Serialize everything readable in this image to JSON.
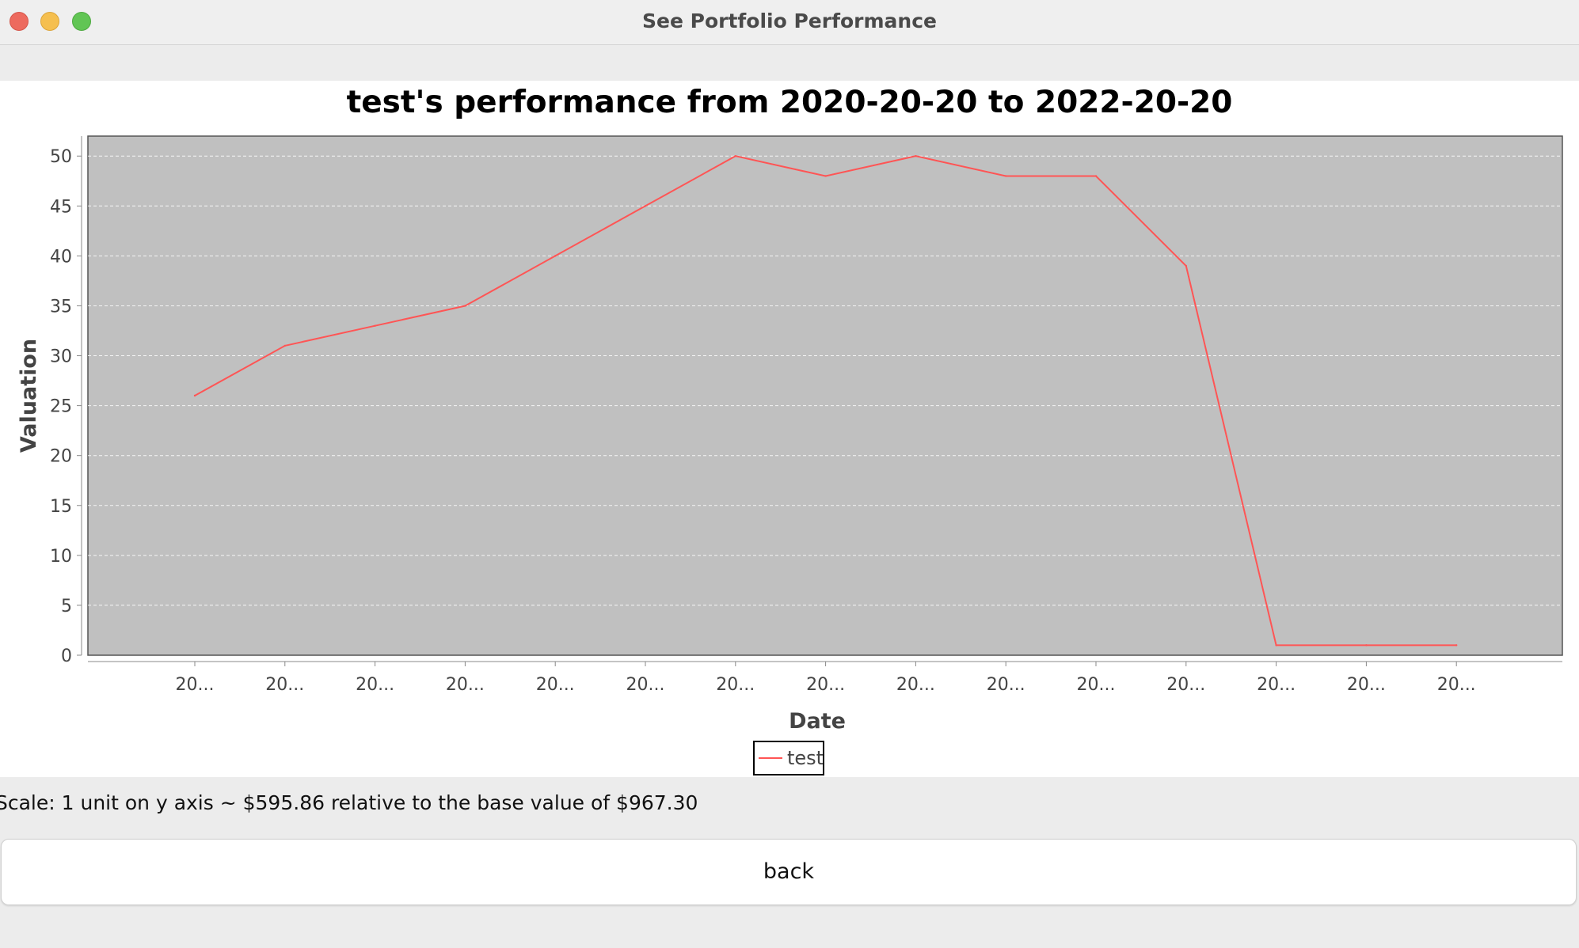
{
  "window": {
    "title": "See Portfolio Performance"
  },
  "colors": {
    "plot_background": "#c0c0c0",
    "series_line": "#ff5555",
    "gridline": "#ffffff"
  },
  "chart_data": {
    "type": "line",
    "title": "test's performance from 2020-20-20 to 2022-20-20",
    "xlabel": "Date",
    "ylabel": "Valuation",
    "categories": [
      "20...",
      "20...",
      "20...",
      "20...",
      "20...",
      "20...",
      "20...",
      "20...",
      "20...",
      "20...",
      "20...",
      "20...",
      "20...",
      "20...",
      "20..."
    ],
    "series": [
      {
        "name": "test",
        "values": [
          26,
          31,
          33,
          35,
          40,
          45,
          50,
          48,
          50,
          48,
          48,
          39,
          1,
          1,
          1
        ]
      }
    ],
    "ylim": [
      0,
      52
    ],
    "yticks": [
      0,
      5,
      10,
      15,
      20,
      25,
      30,
      35,
      40,
      45,
      50
    ],
    "grid": true,
    "legend_position": "bottom-center"
  },
  "scale_note": "Scale: 1 unit on y axis ~ $595.86 relative to the base value of $967.30",
  "back_button": {
    "label": "back"
  }
}
